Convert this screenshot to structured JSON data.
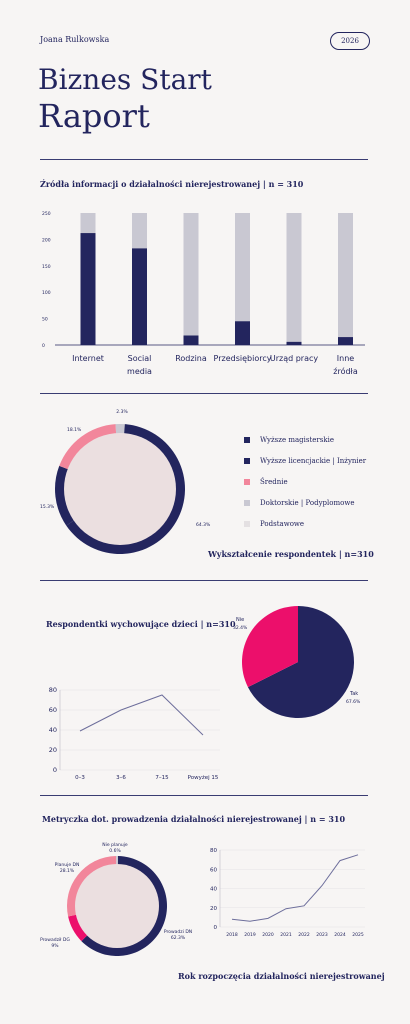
{
  "header": {
    "author": "Joana Rulkowska",
    "year": "2026",
    "title_line1": "Biznes Start",
    "title_line2": "Raport"
  },
  "colors": {
    "navy": "#23255e",
    "pink": "#f2869b",
    "magenta": "#ec0f6b",
    "gray": "#c9c8d2",
    "light": "#ebdfe0",
    "muted": "#e4e0e2"
  },
  "chart_data": [
    {
      "type": "bar",
      "title": "Źródła informacji o działalności nierejestrowanej | n = 310",
      "categories": [
        [
          "Internet"
        ],
        [
          "Social",
          "media"
        ],
        [
          "Rodzina"
        ],
        [
          "Przedsiębiorcy"
        ],
        [
          "Urząd pracy"
        ],
        [
          "Inne",
          "źródła"
        ]
      ],
      "total": 250,
      "values": [
        212,
        183,
        18,
        45,
        6,
        15
      ],
      "yticks": [
        0,
        25,
        50,
        75,
        100,
        125,
        150,
        175,
        200,
        225,
        250
      ],
      "ylim": [
        0,
        250
      ]
    },
    {
      "type": "pie",
      "title": "Wykształcenie respondentek | n=310",
      "labels": [
        "Wyższe magisterskie",
        "Wyższe licencjackie | Inżynier",
        "Średnie",
        "Doktorskie | Podyplomowe",
        "Podstawowe"
      ],
      "values": [
        64.3,
        15.3,
        18.1,
        2.3,
        0
      ],
      "value_labels": [
        "64.3%",
        "15.3%",
        "18.1%",
        "2.3%",
        ""
      ],
      "colors": [
        "#23255e",
        "#23255e",
        "#f2869b",
        "#c9c8d2",
        "#e4e0e2"
      ]
    },
    {
      "type": "pie",
      "title": "Respondentki wychowujące dzieci | n=310",
      "labels": [
        "Tak",
        "Nie"
      ],
      "values": [
        67.6,
        32.4
      ],
      "value_labels": [
        "67.6%",
        "32.4%"
      ],
      "colors": [
        "#23255e",
        "#ec0f6b"
      ]
    },
    {
      "type": "line",
      "categories": [
        "0–3",
        "3–6",
        "7–15",
        "Powyżej 15"
      ],
      "values": [
        39,
        60,
        75,
        35
      ],
      "yticks": [
        0,
        20,
        40,
        60,
        80
      ],
      "ylim": [
        0,
        80
      ]
    },
    {
      "type": "pie",
      "title": "Metryczka dot. prowadzenia działalności nierejestrowanej | n = 310",
      "labels": [
        "Prowadzi DN",
        "Prowadził DG",
        "Planuje DN",
        "Nie planuje"
      ],
      "values": [
        62.3,
        9,
        28.1,
        0.6
      ],
      "value_labels": [
        "62.3%",
        "9%",
        "28.1%",
        "0.6%"
      ],
      "colors": [
        "#23255e",
        "#ec0f6b",
        "#f2869b",
        "#c9c8d2"
      ]
    },
    {
      "type": "line",
      "title": "Rok rozpoczęcia działalności nierejestrowanej",
      "categories": [
        "2018",
        "2019",
        "2020",
        "2021",
        "2022",
        "2023",
        "2024",
        "2025"
      ],
      "values": [
        8,
        6,
        9,
        19,
        22,
        43,
        69,
        75
      ],
      "yticks": [
        0,
        20,
        40,
        60,
        80
      ],
      "ylim": [
        0,
        80
      ]
    }
  ]
}
